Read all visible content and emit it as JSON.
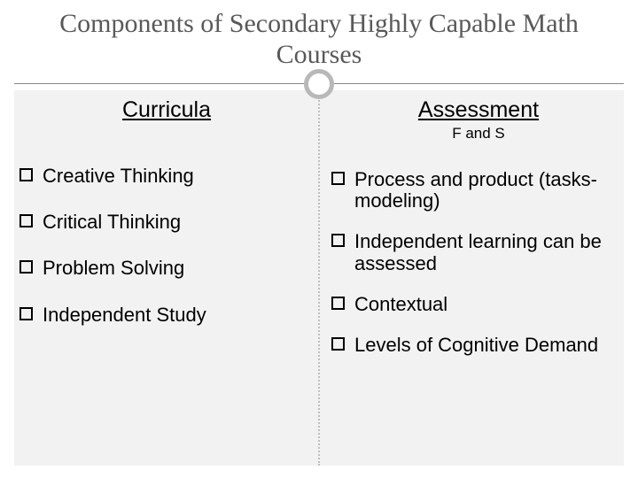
{
  "colors": {
    "background": "#ffffff",
    "panel": "#f2f2f2",
    "title_text": "#595959",
    "body_text": "#000000",
    "divider": "#bfbfbf",
    "circle_border": "#b8b8b8",
    "underline": "#888888"
  },
  "typography": {
    "title_font": "Georgia, serif",
    "body_font": "Arial, sans-serif",
    "title_size_pt": 30,
    "heading_size_pt": 25,
    "subheading_size_pt": 17,
    "item_size_pt": 22
  },
  "title": "Components of Secondary Highly Capable Math Courses",
  "left": {
    "heading": "Curricula",
    "items": [
      "Creative Thinking",
      "Critical Thinking",
      "Problem Solving",
      "Independent Study"
    ]
  },
  "right": {
    "heading": "Assessment",
    "subheading": "F and S",
    "items": [
      "Process and product (tasks-modeling)",
      "Independent learning can be assessed",
      "Contextual",
      "Levels of Cognitive Demand"
    ]
  }
}
